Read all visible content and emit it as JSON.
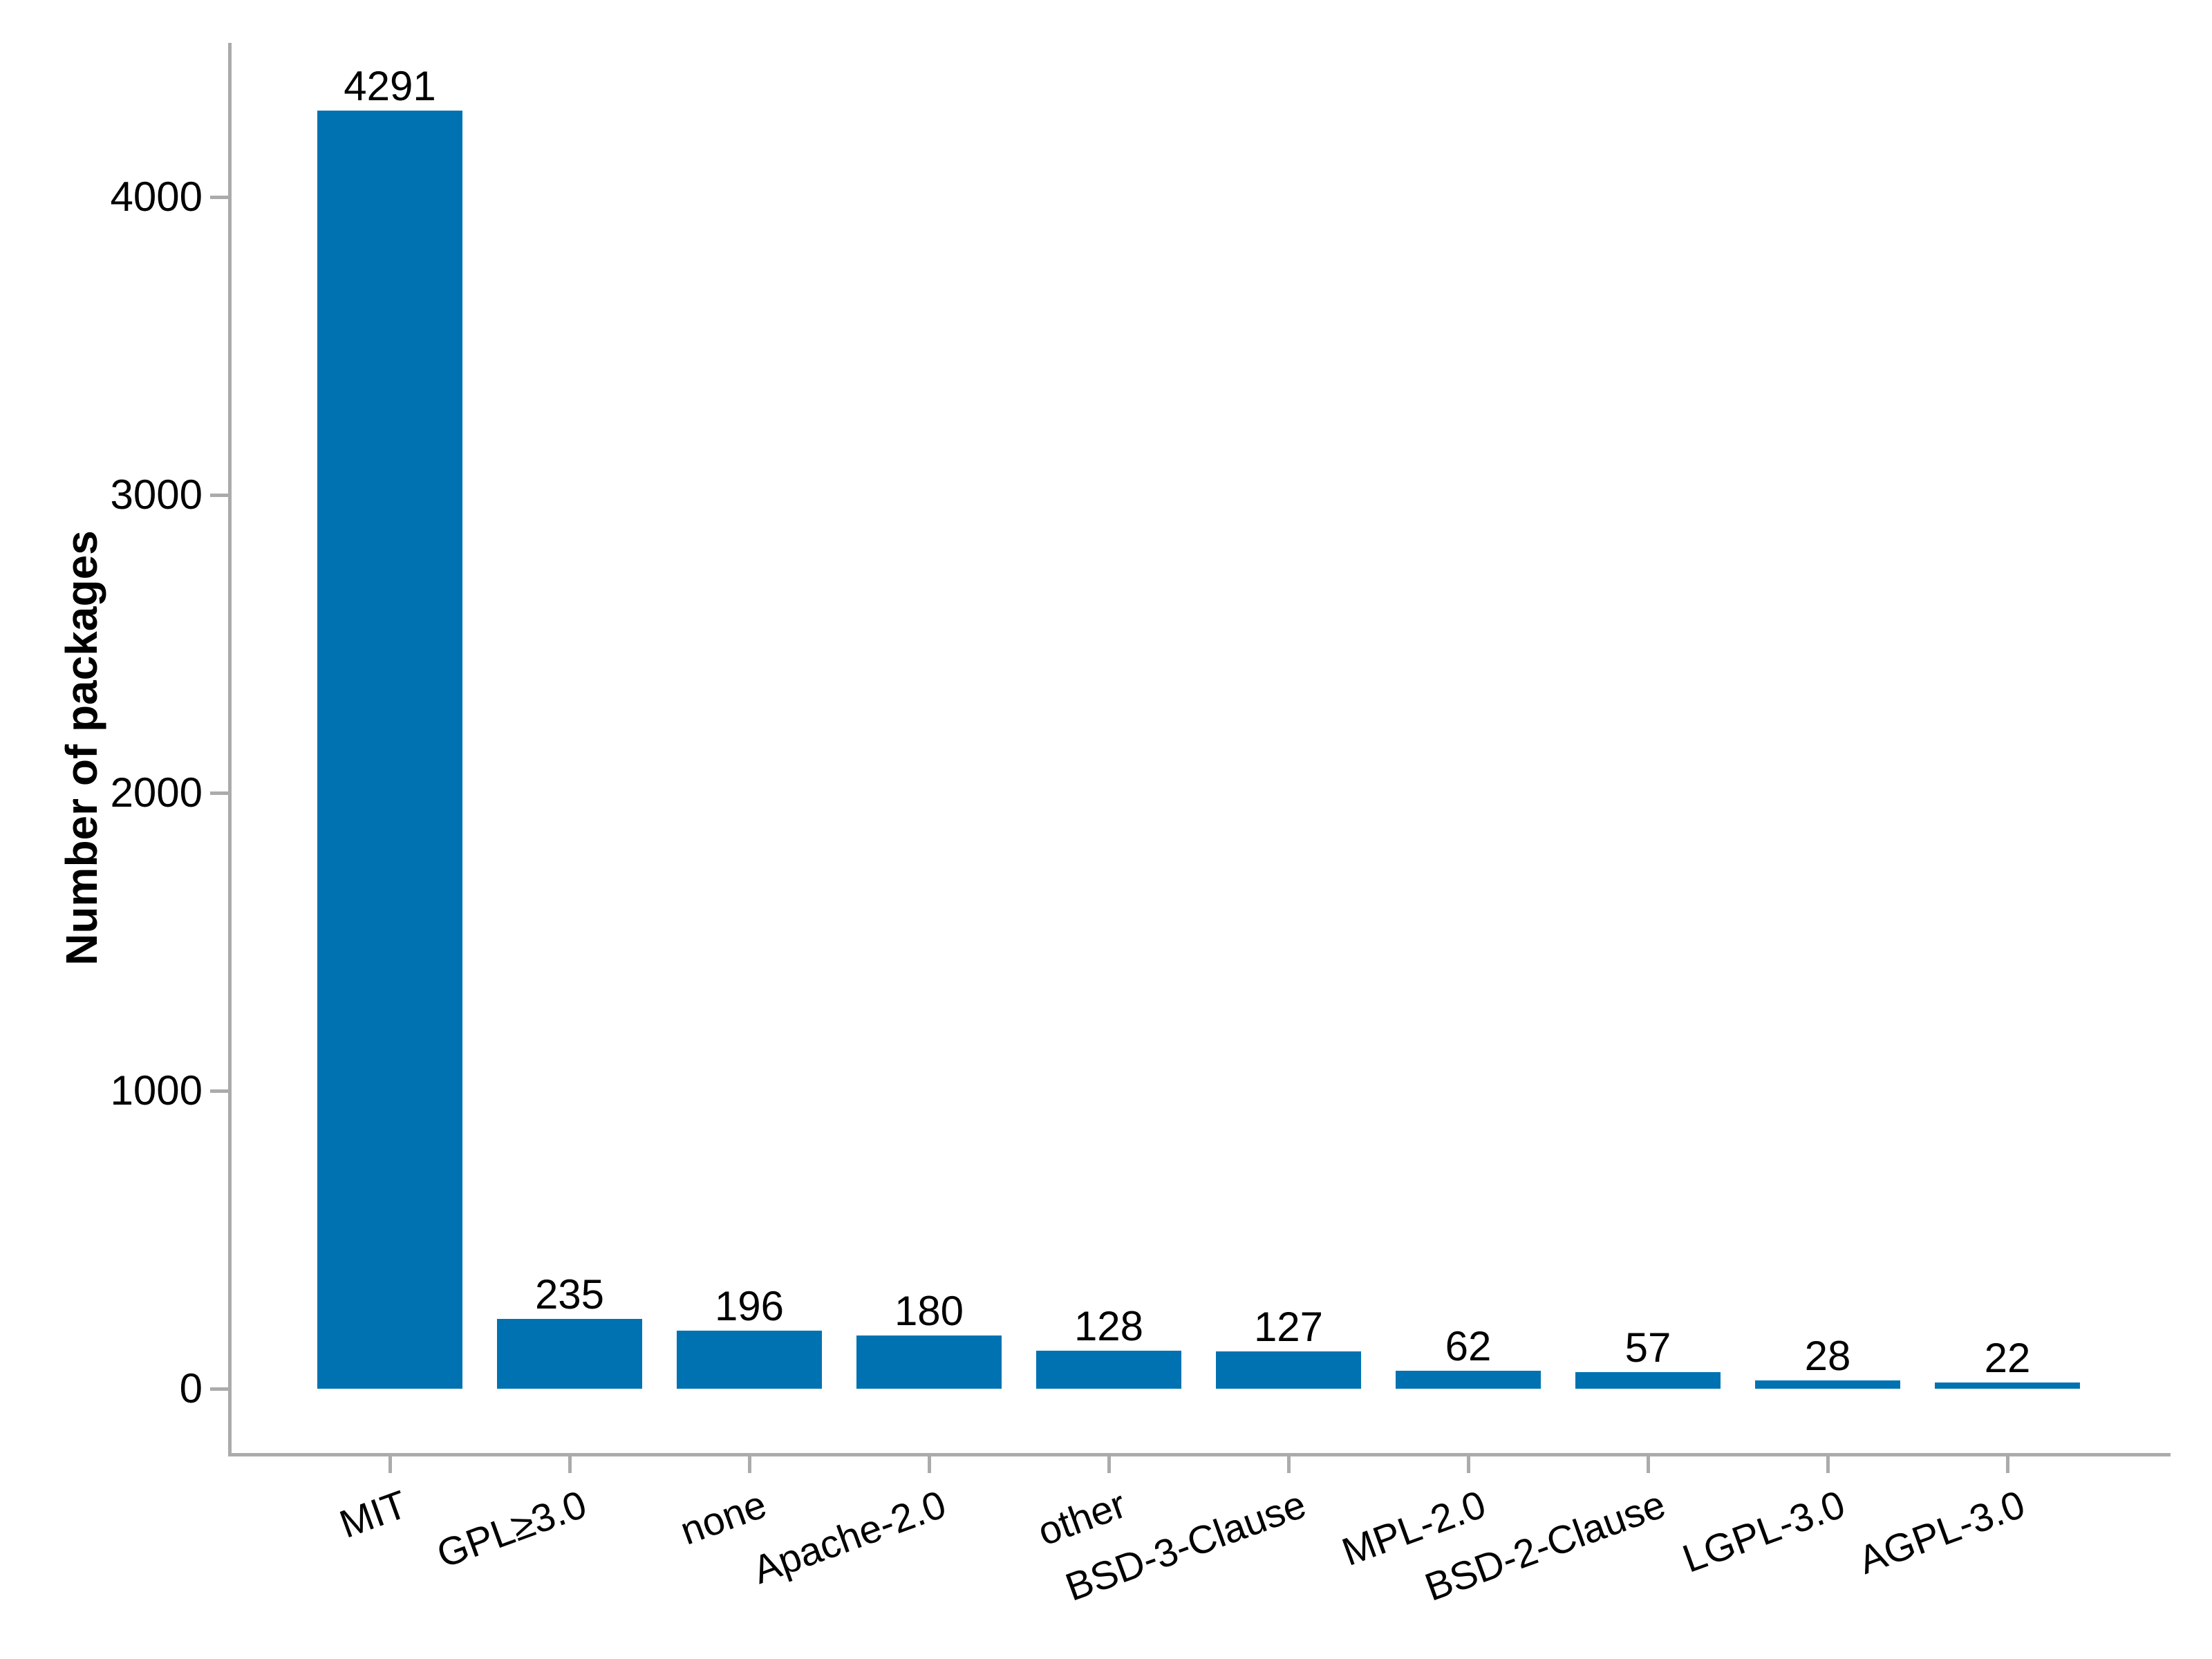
{
  "chart_data": {
    "type": "bar",
    "title": "",
    "xlabel": "",
    "ylabel": "Number of packages",
    "categories": [
      "MIT",
      "GPL≥3.0",
      "none",
      "Apache-2.0",
      "other",
      "BSD-3-Clause",
      "MPL-2.0",
      "BSD-2-Clause",
      "LGPL-3.0",
      "AGPL-3.0"
    ],
    "values": [
      4291,
      235,
      196,
      180,
      128,
      127,
      62,
      57,
      28,
      22
    ],
    "bar_labels": [
      "4291",
      "235",
      "196",
      "180",
      "128",
      "127",
      "62",
      "57",
      "28",
      "22"
    ],
    "yticks": [
      0,
      1000,
      2000,
      3000,
      4000
    ],
    "ytick_labels": [
      "0",
      "1000",
      "2000",
      "3000",
      "4000"
    ],
    "ylim": [
      -215,
      4518
    ],
    "grid": false,
    "legend": null,
    "bar_color": "#0072b2",
    "axis_color": "#ababab",
    "text_color": "#000000",
    "x_label_angle_deg": -20
  }
}
